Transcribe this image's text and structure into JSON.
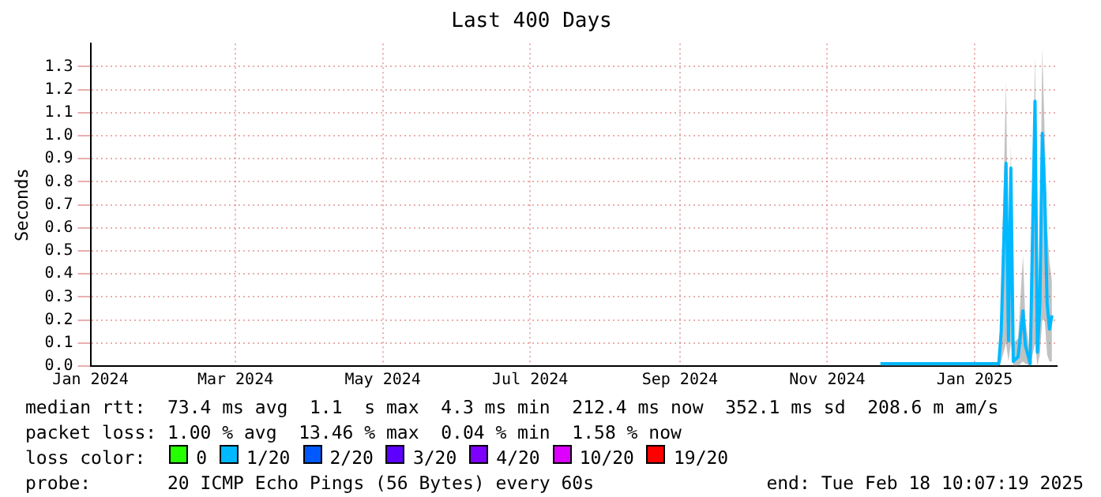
{
  "chart_data": {
    "type": "line",
    "title": "Last 400 Days",
    "ylabel": "Seconds",
    "legend_title": "loss color:",
    "legend": "bottom",
    "grid": true,
    "marker": "none",
    "xlim": [
      "2024-01-15",
      "2025-02-18"
    ],
    "xticks": [
      {
        "value": "2024-01-15",
        "label": "Jan 2024"
      },
      {
        "value": "2024-03-15",
        "label": "Mar 2024"
      },
      {
        "value": "2024-05-15",
        "label": "May 2024"
      },
      {
        "value": "2024-07-15",
        "label": "Jul 2024"
      },
      {
        "value": "2024-09-15",
        "label": "Sep 2024"
      },
      {
        "value": "2024-11-15",
        "label": "Nov 2024"
      },
      {
        "value": "2025-01-15",
        "label": "Jan 2025"
      }
    ],
    "ylim": [
      0,
      1.4
    ],
    "yticks": [
      {
        "value": 0,
        "label": "0.0"
      },
      {
        "value": 0.1,
        "label": "0.1"
      },
      {
        "value": 0.2,
        "label": "0.2"
      },
      {
        "value": 0.3,
        "label": "0.3"
      },
      {
        "value": 0.4,
        "label": "0.4"
      },
      {
        "value": 0.5,
        "label": "0.5"
      },
      {
        "value": 0.6,
        "label": "0.6"
      },
      {
        "value": 0.7,
        "label": "0.7"
      },
      {
        "value": 0.8,
        "label": "0.8"
      },
      {
        "value": 0.9,
        "label": "0.9"
      },
      {
        "value": 1,
        "label": "1.0"
      },
      {
        "value": 1.1,
        "label": "1.1"
      },
      {
        "value": 1.2,
        "label": "1.2"
      },
      {
        "value": 1.3,
        "label": "1.3"
      }
    ],
    "series": [
      {
        "color": "#00b8ff",
        "x": [
          "2024-12-07",
          "2025-01-01",
          "2025-01-25",
          "2025-01-26",
          "2025-01-28",
          "2025-01-29",
          "2025-01-30",
          "2025-01-31",
          "2025-02-02",
          "2025-02-04",
          "2025-02-05",
          "2025-02-07",
          "2025-02-09",
          "2025-02-10",
          "2025-02-11",
          "2025-02-12",
          "2025-02-13",
          "2025-02-14",
          "2025-02-15",
          "2025-02-16"
        ],
        "values": [
          0.01,
          0.01,
          0.01,
          0.15,
          0.88,
          0.11,
          0.86,
          0.02,
          0.04,
          0.24,
          0.09,
          0.01,
          1.15,
          0.06,
          0.27,
          1.01,
          0.75,
          0.27,
          0.16,
          0.22
        ],
        "lower": [
          0,
          0,
          0,
          0.02,
          0.1,
          0.02,
          0.1,
          0,
          0,
          0.02,
          0.01,
          0,
          0.1,
          0,
          0.05,
          0.2,
          0.2,
          0.05,
          0.02,
          0.02
        ],
        "upper": [
          0.01,
          0.01,
          0.01,
          0.3,
          1.24,
          0.3,
          0.96,
          0.1,
          0.12,
          0.48,
          0.2,
          0.05,
          1.35,
          0.3,
          0.5,
          1.38,
          1.0,
          0.6,
          0.45,
          0.37
        ]
      },
      {
        "name": "0",
        "color": "#26ff00"
      },
      {
        "name": "1/20",
        "color": "#00b8ff"
      },
      {
        "name": "2/20",
        "color": "#0059ff"
      },
      {
        "name": "3/20",
        "color": "#5e00ff"
      },
      {
        "name": "4/20",
        "color": "#7e00ff"
      },
      {
        "name": "10/20",
        "color": "#dd00ff"
      },
      {
        "name": "19/20",
        "color": "#ff0000"
      }
    ],
    "annotations": [
      "median rtt:  73.4 ms avg  1.1  s max  4.3 ms min  212.4 ms now  352.1 ms sd  208.6 m am/s",
      "packet loss: 1.00 % avg  13.46 % max  0.04 % min  1.58 % now",
      "probe:       20 ICMP Echo Pings (56 Bytes) every 60s",
      "end: Tue Feb 18 10:07:19 2025"
    ]
  }
}
